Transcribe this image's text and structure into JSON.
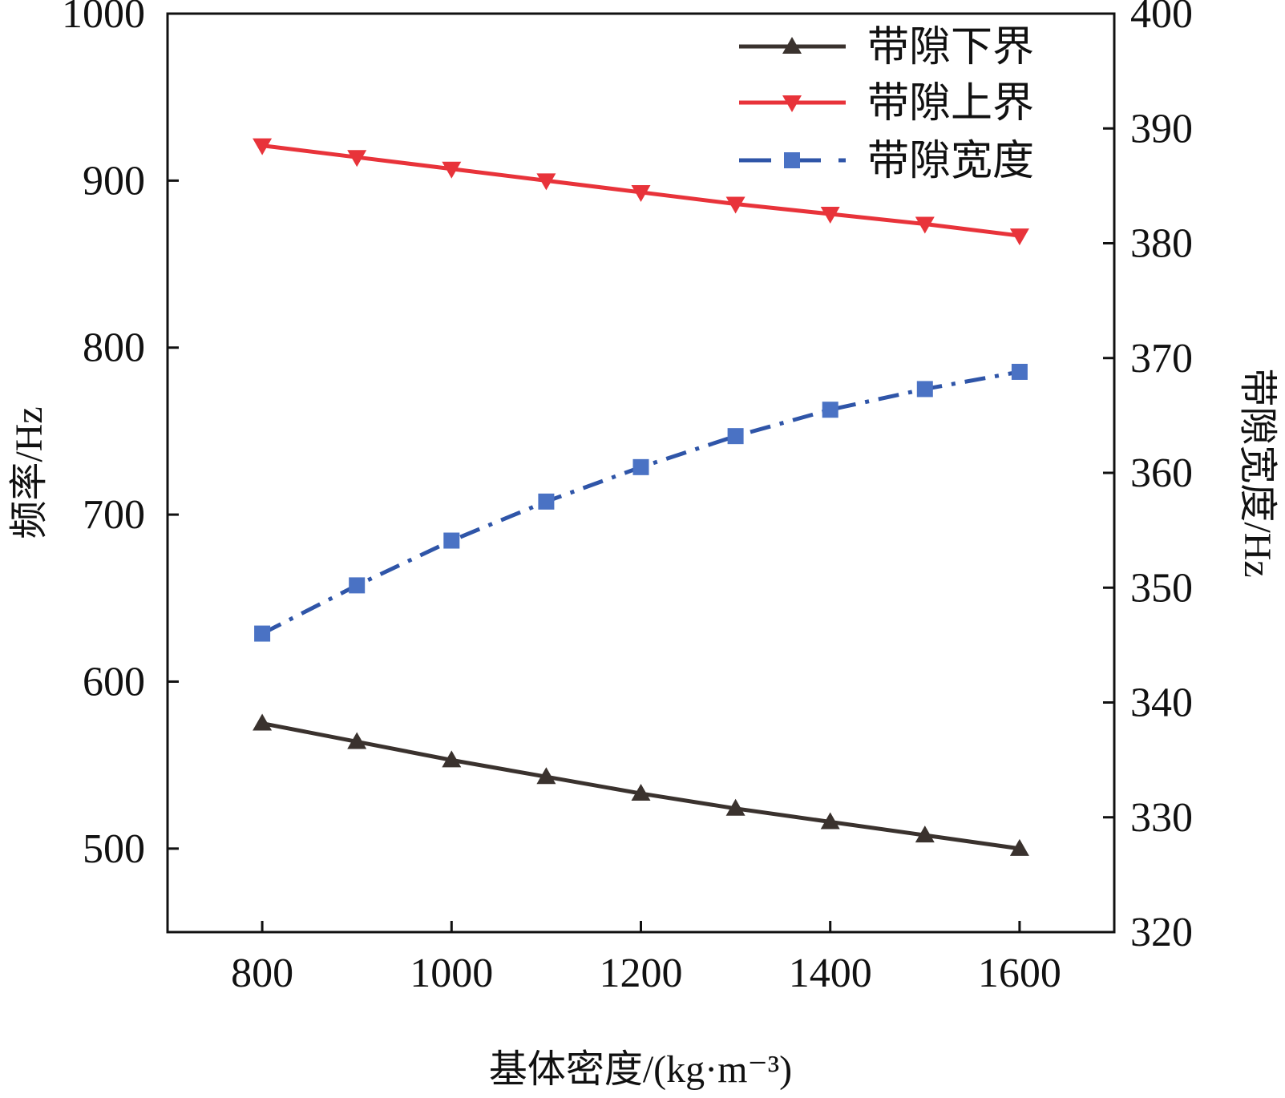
{
  "chart_data": {
    "type": "line",
    "x": [
      800,
      900,
      1000,
      1100,
      1200,
      1300,
      1400,
      1500,
      1600
    ],
    "xlabel": "基体密度/(kg·m⁻³)",
    "xlim": [
      700,
      1700
    ],
    "xticks": [
      800,
      1000,
      1200,
      1400,
      1600
    ],
    "ylabel_left": "频率/Hz",
    "ylim_left": [
      450,
      1000
    ],
    "yticks_left": [
      500,
      600,
      700,
      800,
      900,
      1000
    ],
    "ylabel_right": "带隙宽度/Hz",
    "ylim_right": [
      320,
      400
    ],
    "yticks_right": [
      320,
      330,
      340,
      350,
      360,
      370,
      380,
      390,
      400
    ],
    "grid": false,
    "legend_position": "top-right",
    "colors": {
      "lower": "#3a322e",
      "upper": "#e8333a",
      "width": "#2f55a8",
      "width_marker": "#4a72c4"
    },
    "series": [
      {
        "name": "带隙下界",
        "axis": "left",
        "marker": "triangle-up",
        "line": "solid",
        "values": [
          575,
          564,
          553,
          543,
          533,
          524,
          516,
          508,
          500
        ]
      },
      {
        "name": "带隙上界",
        "axis": "left",
        "marker": "triangle-down",
        "line": "solid",
        "values": [
          921,
          914,
          907,
          900,
          893,
          886,
          880,
          874,
          867
        ]
      },
      {
        "name": "带隙宽度",
        "axis": "right",
        "marker": "square",
        "line": "dash-dot",
        "values": [
          346.0,
          350.2,
          354.1,
          357.5,
          360.5,
          363.2,
          365.5,
          367.3,
          368.8
        ]
      }
    ]
  }
}
